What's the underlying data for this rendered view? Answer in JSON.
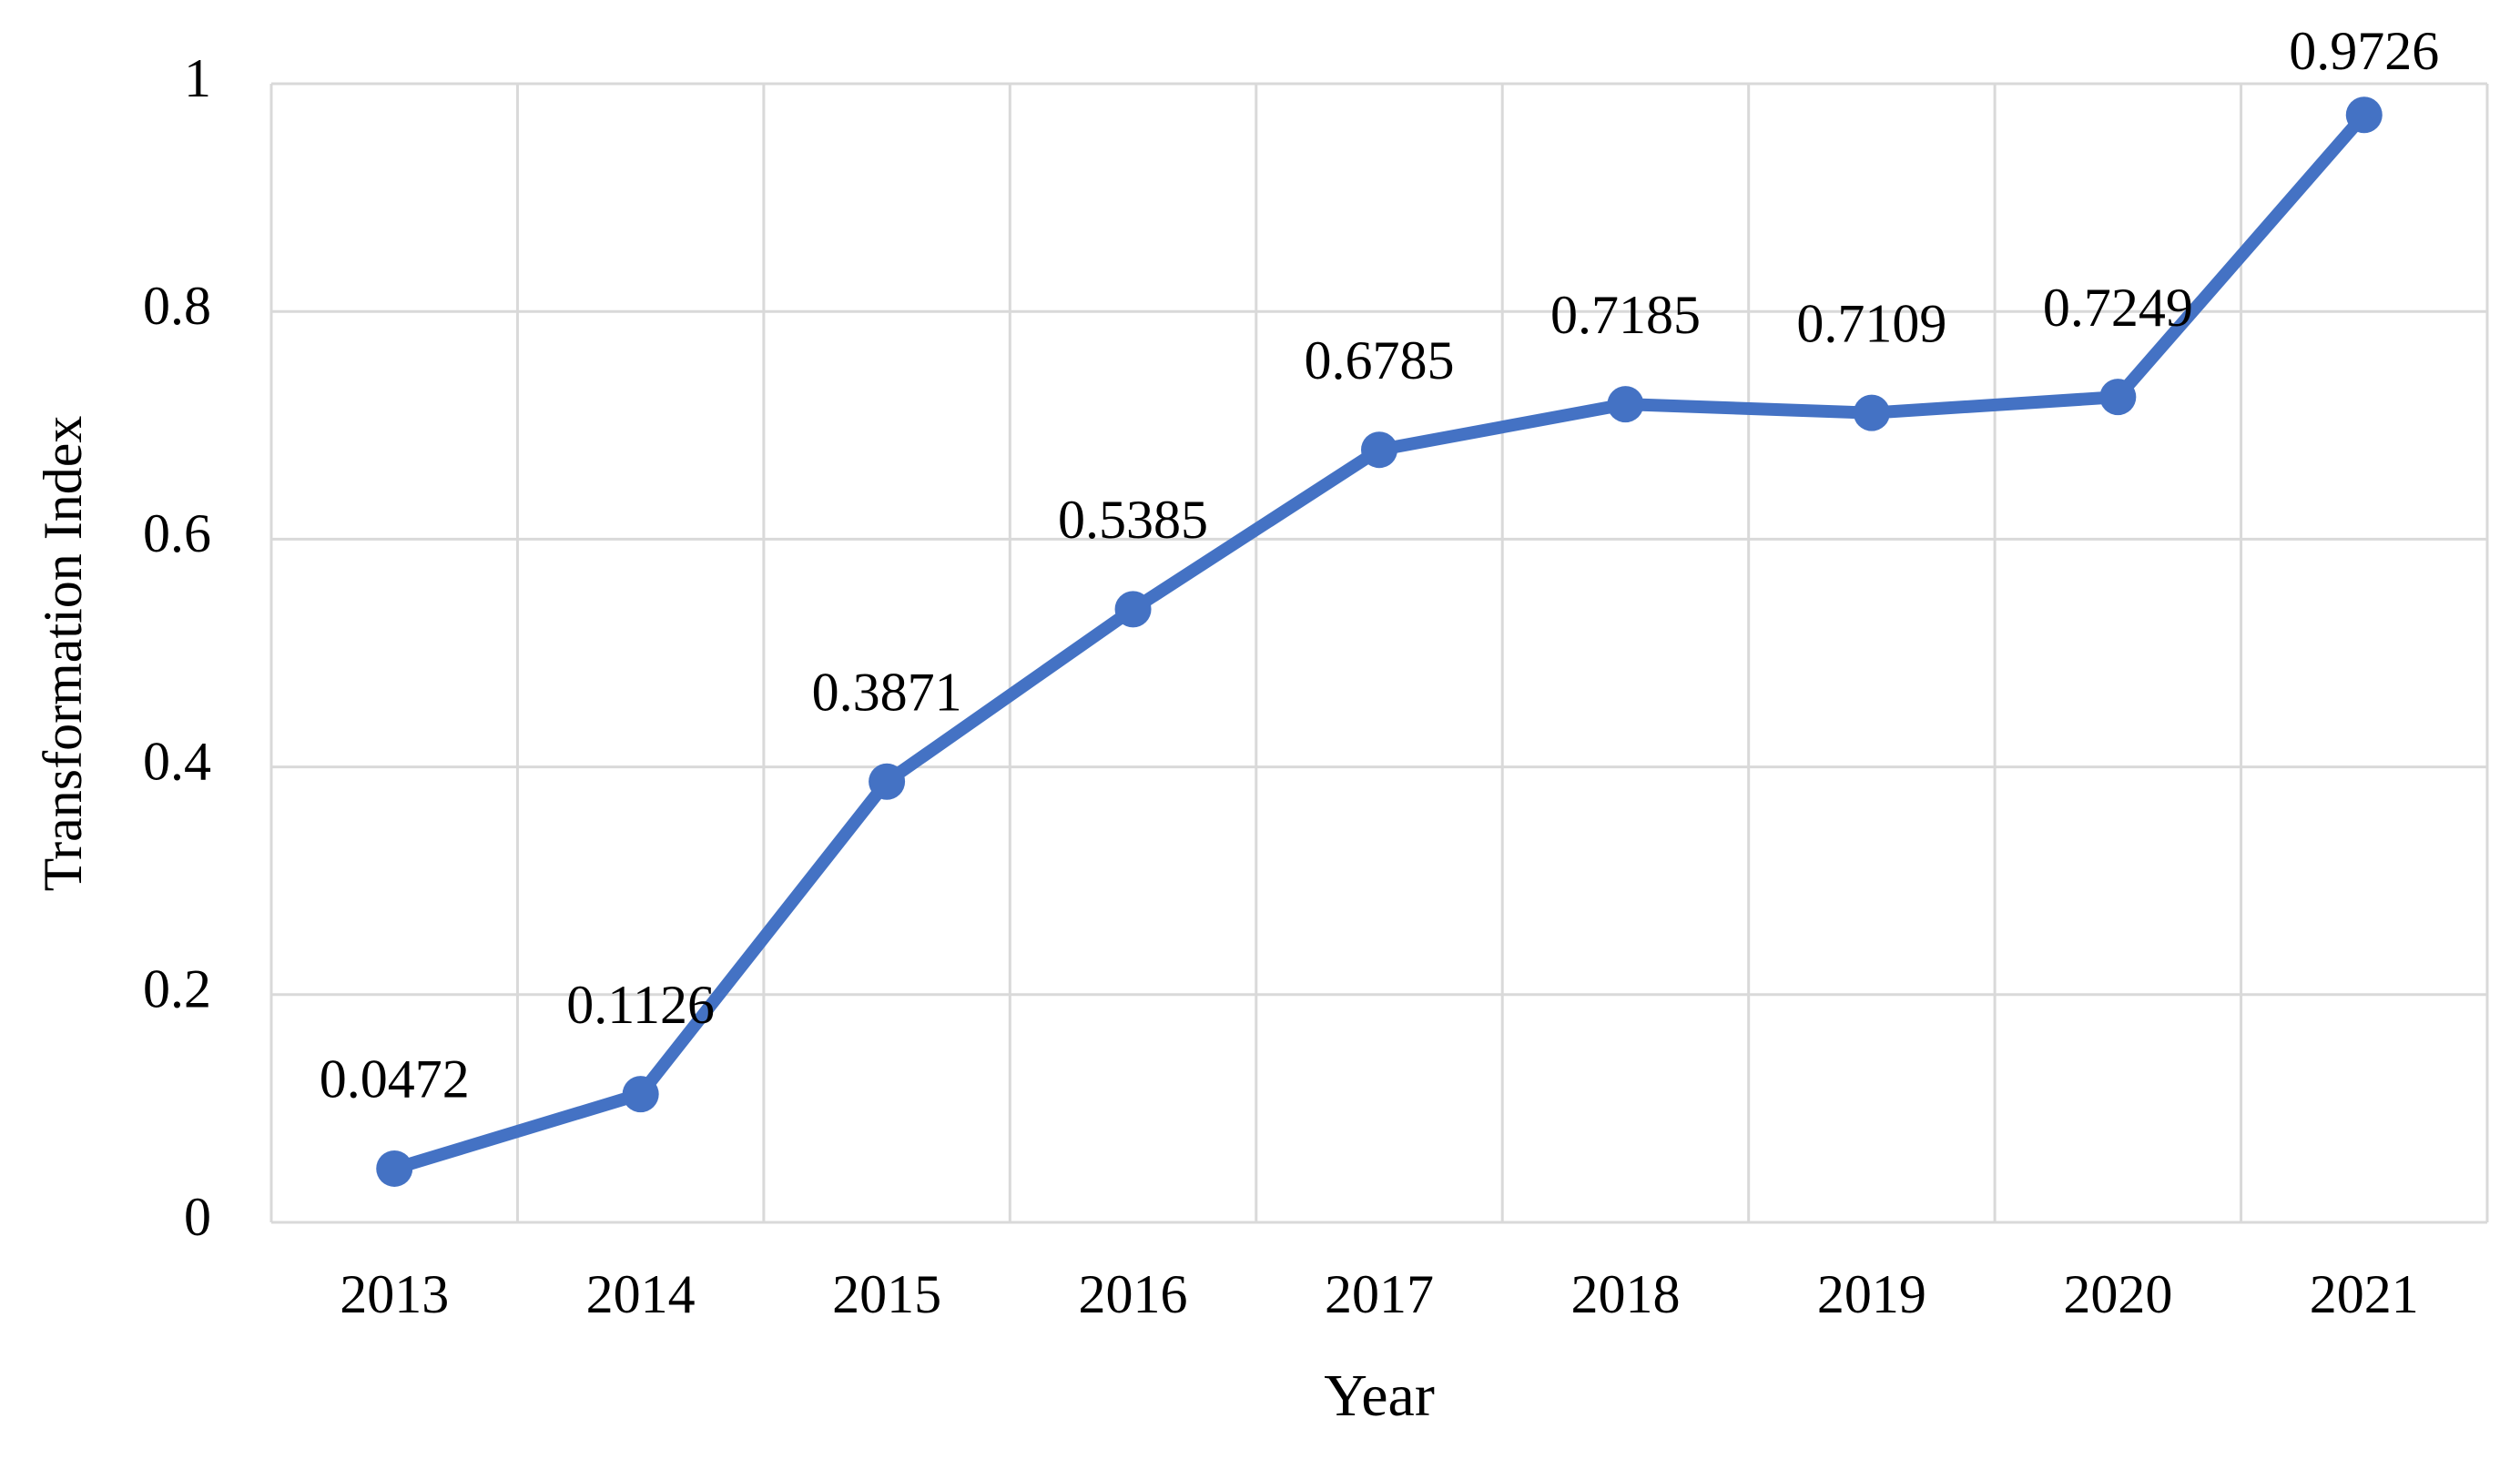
{
  "chart_data": {
    "type": "line",
    "y_label": "Transformation Index",
    "x_label": "Year",
    "categories": [
      "2013",
      "2014",
      "2015",
      "2016",
      "2017",
      "2018",
      "2019",
      "2020",
      "2021"
    ],
    "series": [
      {
        "name": "Transformation Index",
        "color": "#4472c4",
        "values": [
          0.0472,
          0.1126,
          0.3871,
          0.5385,
          0.6785,
          0.7185,
          0.7109,
          0.7249,
          0.9726
        ]
      }
    ],
    "ylim": [
      0,
      1
    ],
    "yticks": [
      0,
      0.2,
      0.4,
      0.6,
      0.8,
      1
    ],
    "grid": true
  }
}
